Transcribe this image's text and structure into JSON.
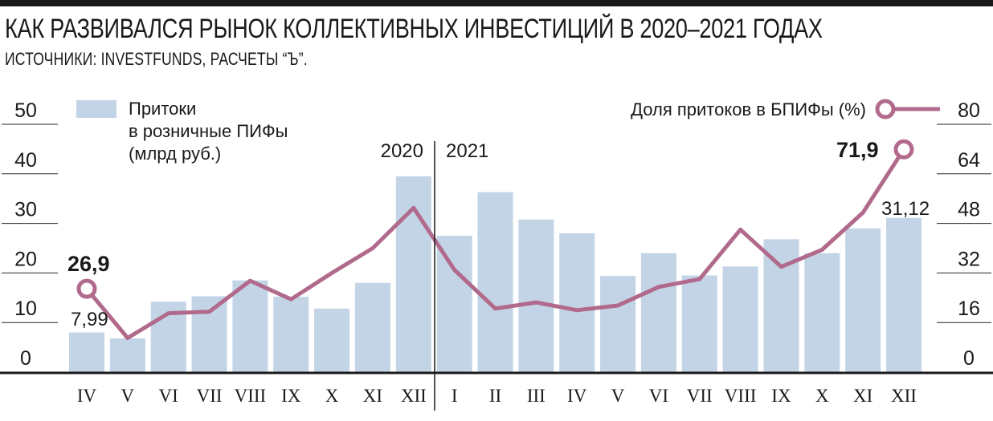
{
  "header": {
    "title": "КАК РАЗВИВАЛСЯ РЫНОК КОЛЛЕКТИВНЫХ ИНВЕСТИЦИЙ В 2020–2021 ГОДАХ",
    "subtitle": "ИСТОЧНИКИ: INVESTFUNDS, РАСЧЕТЫ “Ъ”."
  },
  "colors": {
    "bar": "#c3d4e6",
    "line": "#b16a8c",
    "text": "#1a1a1a",
    "grid": "#222222"
  },
  "chart_data": {
    "type": "bar",
    "categories": [
      "IV",
      "V",
      "VI",
      "VII",
      "VIII",
      "IX",
      "X",
      "XI",
      "XII",
      "I",
      "II",
      "III",
      "IV",
      "V",
      "VI",
      "VII",
      "VIII",
      "IX",
      "X",
      "XI",
      "XII"
    ],
    "year_labels": [
      {
        "label": "2020",
        "index": 8
      },
      {
        "label": "2021",
        "index": 9
      }
    ],
    "series": [
      {
        "name": "Притоки в розничные ПИФы (млрд руб.)",
        "type": "bar",
        "axis": "left",
        "values": [
          7.99,
          6.8,
          14.2,
          15.3,
          18.5,
          15.2,
          12.8,
          18.0,
          39.5,
          27.5,
          36.3,
          30.8,
          28.0,
          19.4,
          24.0,
          19.5,
          21.3,
          26.8,
          24.0,
          29.0,
          31.12
        ]
      },
      {
        "name": "Доля притоков в БПИФы (%)",
        "type": "line",
        "axis": "right",
        "values": [
          26.9,
          11.0,
          19.0,
          19.5,
          29.5,
          23.5,
          32.0,
          40.0,
          53.0,
          33.0,
          20.5,
          22.5,
          20.0,
          21.5,
          27.5,
          30.0,
          46.0,
          34.0,
          39.5,
          51.5,
          71.9
        ]
      }
    ],
    "left_axis": {
      "ylim": [
        0,
        50
      ],
      "ticks": [
        "0",
        "10",
        "20",
        "30",
        "40",
        "50"
      ]
    },
    "right_axis": {
      "ylim": [
        0,
        80
      ],
      "ticks": [
        "0",
        "16",
        "32",
        "48",
        "64",
        "80"
      ]
    },
    "legend": {
      "bars": [
        "Притоки",
        "в розничные ПИФы",
        "(млрд руб.)"
      ],
      "line": "Доля притоков в БПИФы (%)",
      "placement": "top"
    },
    "annotations": {
      "first_line": "26,9",
      "first_bar": "7,99",
      "last_line": "71,9",
      "last_bar": "31,12"
    },
    "grid": true
  }
}
